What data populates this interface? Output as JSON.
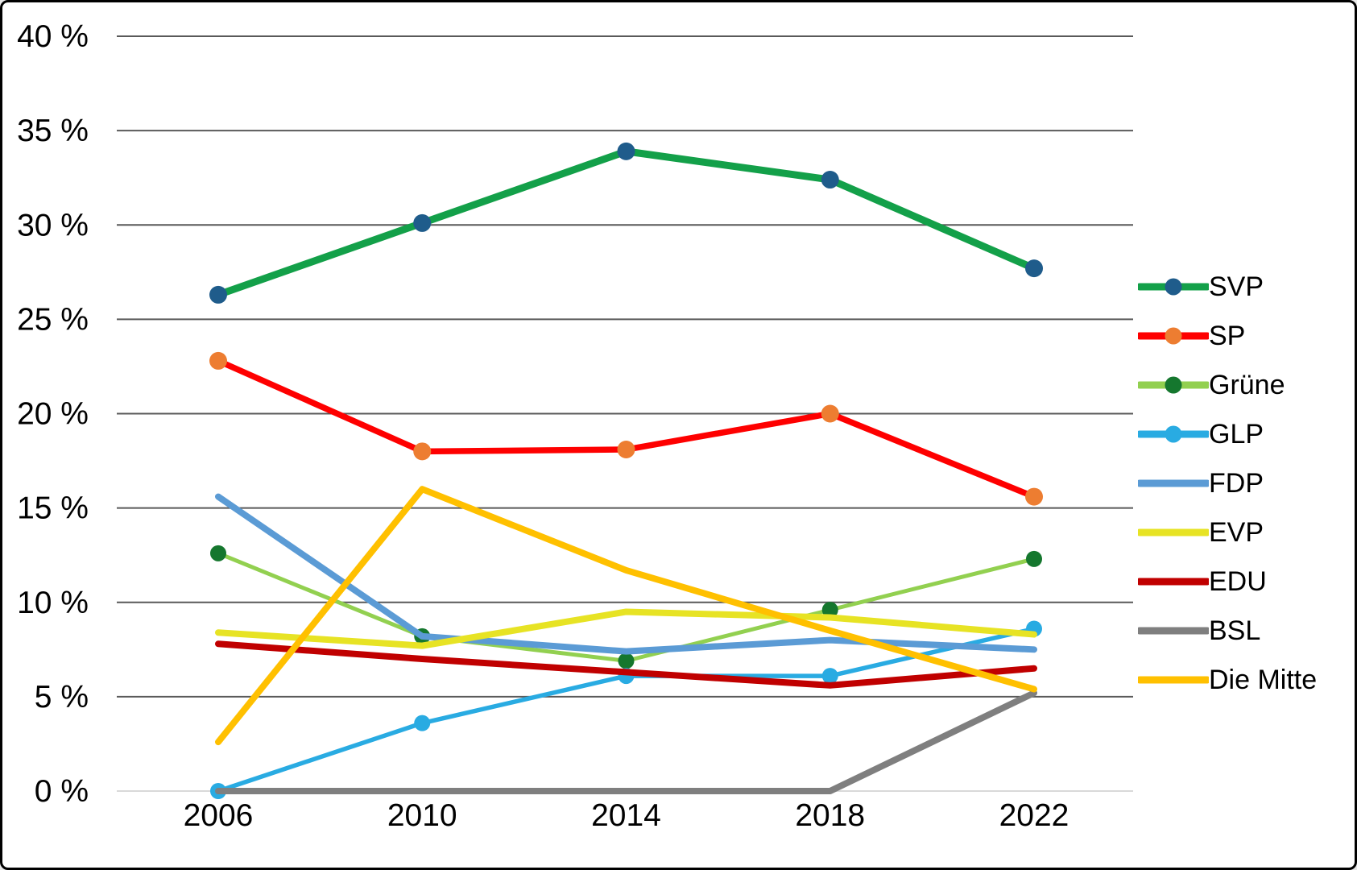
{
  "chart_data": {
    "type": "line",
    "title": "",
    "xlabel": "",
    "ylabel": "",
    "x_labels": [
      "2006",
      "2010",
      "2014",
      "2018",
      "2022"
    ],
    "y_ticks": [
      {
        "value": 40,
        "label": "40 %"
      },
      {
        "value": 35,
        "label": "35 %"
      },
      {
        "value": 30,
        "label": "30 %"
      },
      {
        "value": 25,
        "label": "25 %"
      },
      {
        "value": 20,
        "label": "20 %"
      },
      {
        "value": 15,
        "label": "15 %"
      },
      {
        "value": 10,
        "label": "10 %"
      },
      {
        "value": 5,
        "label": "5 %"
      },
      {
        "value": 0,
        "label": "0 %"
      }
    ],
    "ylim": [
      0,
      40
    ],
    "grid": true,
    "legend_position": "right",
    "colors": {
      "background": "#ffffff",
      "gridline": "#595959",
      "zero_line": "#d9d9d9",
      "text": "#000000"
    },
    "series": [
      {
        "name": "SVP",
        "color": "#13a049",
        "line_width": 9,
        "marker": true,
        "marker_color": "#1f5c8b",
        "marker_radius": 11,
        "values": [
          26.3,
          30.1,
          33.9,
          32.4,
          27.7
        ]
      },
      {
        "name": "SP",
        "color": "#fe0000",
        "line_width": 7.5,
        "marker": true,
        "marker_color": "#ed7d31",
        "marker_radius": 11,
        "values": [
          22.8,
          18.0,
          18.1,
          20.0,
          15.6
        ]
      },
      {
        "name": "Grüne",
        "color": "#92d050",
        "line_width": 5,
        "marker": true,
        "marker_color": "#15772e",
        "marker_radius": 10,
        "values": [
          12.6,
          8.2,
          6.9,
          9.6,
          12.3
        ]
      },
      {
        "name": "GLP",
        "color": "#29abe2",
        "line_width": 5.5,
        "marker": true,
        "marker_color": "#29abe2",
        "marker_radius": 10,
        "values": [
          0.0,
          3.6,
          6.1,
          6.1,
          8.6
        ]
      },
      {
        "name": "FDP",
        "color": "#5b9bd5",
        "line_width": 8,
        "marker": false,
        "values": [
          15.6,
          8.2,
          7.4,
          8.0,
          7.5
        ]
      },
      {
        "name": "EVP",
        "color": "#e7e324",
        "line_width": 8,
        "marker": false,
        "values": [
          8.4,
          7.7,
          9.5,
          9.2,
          8.3
        ]
      },
      {
        "name": "EDU",
        "color": "#c00000",
        "line_width": 8,
        "marker": false,
        "values": [
          7.8,
          7.0,
          6.3,
          5.6,
          6.5
        ]
      },
      {
        "name": "BSL",
        "color": "#7f7f7f",
        "line_width": 8,
        "marker": false,
        "values": [
          0.0,
          0.0,
          0.0,
          0.0,
          5.2
        ]
      },
      {
        "name": "Die Mitte",
        "color": "#ffc000",
        "line_width": 8,
        "marker": false,
        "values": [
          2.6,
          16.0,
          11.7,
          8.5,
          5.4
        ]
      }
    ]
  }
}
